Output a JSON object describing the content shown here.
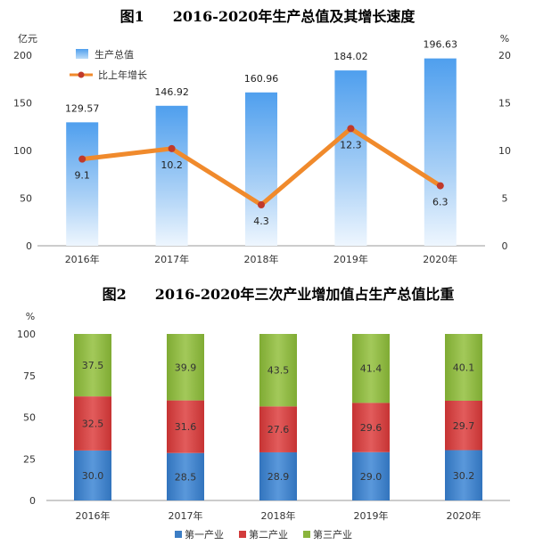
{
  "chart_data": [
    {
      "type": "bar",
      "title": "图1　　2016-2020年生产总值及其增长速度",
      "categories": [
        "2016年",
        "2017年",
        "2018年",
        "2019年",
        "2020年"
      ],
      "series": [
        {
          "name": "生产总值",
          "type": "bar",
          "axis": "left",
          "values": [
            129.57,
            146.92,
            160.96,
            184.02,
            196.63
          ],
          "labels": [
            "129.57",
            "146.92",
            "160.96",
            "184.02",
            "196.63"
          ]
        },
        {
          "name": "比上年增长",
          "type": "line",
          "axis": "right",
          "values": [
            9.1,
            10.2,
            4.3,
            12.3,
            6.3
          ],
          "labels": [
            "9.1",
            "10.2",
            "4.3",
            "12.3",
            "6.3"
          ]
        }
      ],
      "ylabel_left": "亿元",
      "ylabel_right": "%",
      "ylim_left": [
        0,
        200
      ],
      "yticks_left": [
        "0",
        "50",
        "100",
        "150",
        "200"
      ],
      "ylim_right": [
        0,
        20
      ],
      "yticks_right": [
        "0",
        "5",
        "10",
        "15",
        "20"
      ],
      "legend_position": "top-left",
      "colors": {
        "bar": "#5ea6ee",
        "line": "#f08a2c",
        "marker": "#c0392b"
      }
    },
    {
      "type": "bar",
      "stacked": true,
      "title": "图2　　2016-2020年三次产业增加值占生产总值比重",
      "categories": [
        "2016年",
        "2017年",
        "2018年",
        "2019年",
        "2020年"
      ],
      "series": [
        {
          "name": "第一产业",
          "values": [
            30.0,
            28.5,
            28.9,
            29.0,
            30.2
          ],
          "labels": [
            "30.0",
            "28.5",
            "28.9",
            "29.0",
            "30.2"
          ]
        },
        {
          "name": "第二产业",
          "values": [
            32.5,
            31.6,
            27.6,
            29.6,
            29.7
          ],
          "labels": [
            "32.5",
            "31.6",
            "27.6",
            "29.6",
            "29.7"
          ]
        },
        {
          "name": "第三产业",
          "values": [
            37.5,
            39.9,
            43.5,
            41.4,
            40.1
          ],
          "labels": [
            "37.5",
            "39.9",
            "43.5",
            "41.4",
            "40.1"
          ]
        }
      ],
      "ylabel": "%",
      "ylim": [
        0,
        100
      ],
      "yticks": [
        "0",
        "25",
        "50",
        "75",
        "100"
      ],
      "legend_position": "bottom",
      "colors": [
        "#3c7dc4",
        "#d23b3b",
        "#8ab43c"
      ]
    }
  ]
}
